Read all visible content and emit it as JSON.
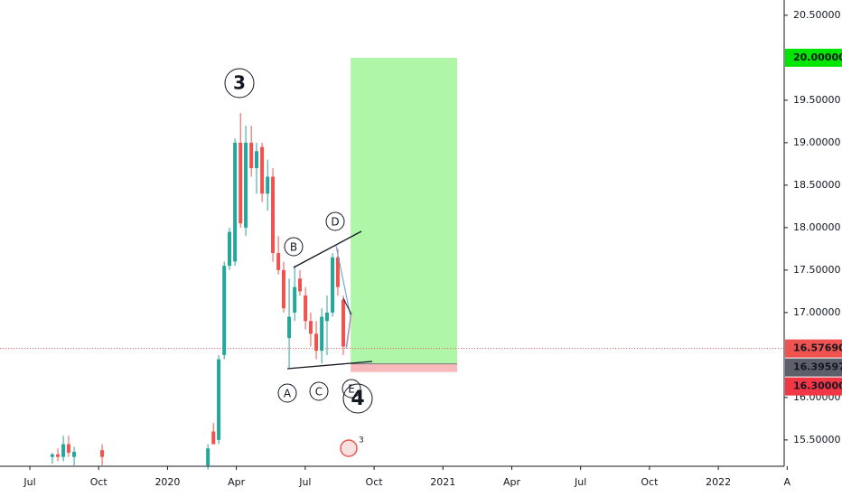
{
  "chart_data": {
    "type": "candlestick",
    "x": [
      0.98,
      1.22,
      1.46,
      1.69,
      1.93,
      3.15,
      7.76,
      8.0,
      8.23,
      8.47,
      8.7,
      8.94,
      9.18,
      9.41,
      9.65,
      9.88,
      10.12,
      10.36,
      10.59,
      10.83,
      11.06,
      11.3,
      11.54,
      11.77,
      12.01,
      12.24,
      12.48,
      12.72,
      12.95,
      13.19,
      13.42,
      13.66
    ],
    "open": [
      15.3,
      15.33,
      15.3,
      15.45,
      15.3,
      15.38,
      15.2,
      15.6,
      15.5,
      16.5,
      17.55,
      17.6,
      19.0,
      18.0,
      19.0,
      18.7,
      18.95,
      18.4,
      18.6,
      17.7,
      17.5,
      16.7,
      17.0,
      17.4,
      17.2,
      16.9,
      16.75,
      16.55,
      16.9,
      17.0,
      17.65,
      17.15
    ],
    "high": [
      15.35,
      15.4,
      15.55,
      15.55,
      15.42,
      15.45,
      15.45,
      15.7,
      16.5,
      17.6,
      18.0,
      19.05,
      19.35,
      19.2,
      19.2,
      19.0,
      19.0,
      18.8,
      18.7,
      17.9,
      17.6,
      17.4,
      17.55,
      17.5,
      17.3,
      17.0,
      16.9,
      17.05,
      17.2,
      17.7,
      17.75,
      17.2
    ],
    "low": [
      15.22,
      15.25,
      15.25,
      15.3,
      15.2,
      15.2,
      15.15,
      15.45,
      15.45,
      16.45,
      17.5,
      17.55,
      18.0,
      17.9,
      18.6,
      18.4,
      18.3,
      18.2,
      17.6,
      17.45,
      17.0,
      16.35,
      16.9,
      17.2,
      16.8,
      16.6,
      16.45,
      16.4,
      16.5,
      16.95,
      17.2,
      16.5
    ],
    "close": [
      15.33,
      15.3,
      15.45,
      15.35,
      15.36,
      15.3,
      15.4,
      15.45,
      16.45,
      17.55,
      17.95,
      19.0,
      18.05,
      19.0,
      18.7,
      18.9,
      18.4,
      18.6,
      17.7,
      17.5,
      17.05,
      16.95,
      17.3,
      17.25,
      16.9,
      16.75,
      16.55,
      16.95,
      17.0,
      17.65,
      17.3,
      16.6
    ],
    "up_color": "#26a69a",
    "down_color": "#ef5350",
    "xlim": [
      -1.3,
      32.87
    ],
    "xticks": [
      {
        "value": 0,
        "label": "Jul"
      },
      {
        "value": 3,
        "label": "Oct"
      },
      {
        "value": 6,
        "label": "2020"
      },
      {
        "value": 9,
        "label": "Apr"
      },
      {
        "value": 12,
        "label": "Jul"
      },
      {
        "value": 15,
        "label": "Oct"
      },
      {
        "value": 18,
        "label": "2021"
      },
      {
        "value": 21,
        "label": "Apr"
      },
      {
        "value": 24,
        "label": "Jul"
      },
      {
        "value": 27,
        "label": "Oct"
      },
      {
        "value": 30,
        "label": "2022"
      },
      {
        "value": 33,
        "label": "A"
      }
    ],
    "ylim": [
      15.19,
      20.68
    ],
    "yticks": [
      {
        "value": 15.5,
        "label": "15.50000"
      },
      {
        "value": 16.0,
        "label": "16.00000"
      },
      {
        "value": 17.0,
        "label": "17.00000"
      },
      {
        "value": 17.5,
        "label": "17.50000"
      },
      {
        "value": 18.0,
        "label": "18.00000"
      },
      {
        "value": 18.5,
        "label": "18.50000"
      },
      {
        "value": 19.0,
        "label": "19.00000"
      },
      {
        "value": 19.5,
        "label": "19.50000"
      },
      {
        "value": 20.5,
        "label": "20.50000"
      }
    ],
    "price_labels": [
      {
        "value": 20.0,
        "label": "20.00000",
        "color": "#00e600",
        "text_color": "#131722"
      },
      {
        "value": 16.5769,
        "label": "16.57690",
        "color": "#ef5350",
        "text_color": "#ffffff"
      },
      {
        "value": 16.39597,
        "label": "16.39597",
        "color": "#5d606b",
        "text_color": "#ffffff"
      },
      {
        "value": 16.3,
        "label": "16.30000",
        "color": "#f23645",
        "text_color": "#ffffff"
      }
    ],
    "current_price": 16.5769,
    "position": {
      "x_start": 13.98,
      "x_end": 18.62,
      "entry": 16.39597,
      "target": 20.0,
      "stop": 16.3,
      "profit_color": "#a6f5a0",
      "loss_color": "#f7b9b9"
    },
    "annotations": [
      "3",
      "B",
      "D",
      "A",
      "C",
      "E",
      "4"
    ],
    "event_badge": "3"
  }
}
